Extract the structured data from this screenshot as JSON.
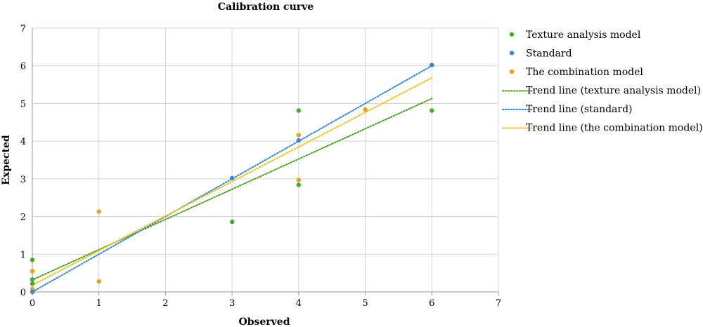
{
  "chart_data": {
    "type": "scatter",
    "title": "Calibration curve",
    "xlabel": "Observed",
    "ylabel": "Expected",
    "xlim": [
      0,
      7
    ],
    "ylim": [
      0,
      7
    ],
    "xticks": [
      "0",
      "1",
      "2",
      "3",
      "4",
      "5",
      "6",
      "7"
    ],
    "yticks": [
      "0",
      "1",
      "2",
      "3",
      "4",
      "5",
      "6",
      "7"
    ],
    "grid": true,
    "legend_position": "right",
    "series": [
      {
        "name": "Texture analysis model",
        "kind": "points",
        "color": "#4aa832",
        "points": [
          [
            0,
            0.85
          ],
          [
            0,
            0.33
          ],
          [
            0,
            0.22
          ],
          [
            3,
            1.86
          ],
          [
            4,
            4.81
          ],
          [
            4,
            2.84
          ],
          [
            6,
            4.81
          ]
        ]
      },
      {
        "name": "Standard",
        "kind": "points",
        "color": "#3a86d8",
        "points": [
          [
            0,
            0
          ],
          [
            3,
            3.02
          ],
          [
            4,
            4.02
          ],
          [
            6,
            6.02
          ]
        ]
      },
      {
        "name": "The combination model",
        "kind": "points",
        "color": "#e8a21c",
        "points": [
          [
            0,
            0.55
          ],
          [
            0,
            0.08
          ],
          [
            1,
            2.13
          ],
          [
            1,
            0.28
          ],
          [
            4,
            4.16
          ],
          [
            4,
            2.97
          ],
          [
            5,
            4.84
          ],
          [
            6,
            6.02
          ]
        ]
      },
      {
        "name": "Trend line (texture analysis model)",
        "kind": "trend",
        "color": "#4a9c1c",
        "from": [
          0,
          0.32
        ],
        "to": [
          6,
          5.13
        ]
      },
      {
        "name": "Trend line (standard)",
        "kind": "trend",
        "color": "#2e86c8",
        "from": [
          0,
          0
        ],
        "to": [
          6,
          6.0
        ]
      },
      {
        "name": "Trend line (the combination model)",
        "kind": "trend",
        "color": "#f0c020",
        "from": [
          0,
          0.18
        ],
        "to": [
          6,
          5.68
        ]
      }
    ]
  }
}
